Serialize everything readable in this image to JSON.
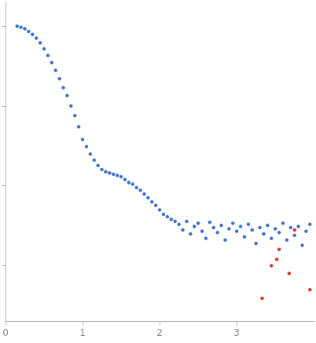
{
  "chart_data": {
    "type": "scatter",
    "log": "y",
    "grid": false,
    "tick_labels": "x",
    "xlim": [
      0,
      4
    ],
    "xticks": [
      0,
      1,
      2,
      3
    ],
    "ylim": [
      0.0002,
      2
    ],
    "yticks": [
      0.001,
      0.01,
      0.1,
      1
    ],
    "series": [
      {
        "color": "#3b6fc8",
        "marker": "circle",
        "x": [
          0.15,
          0.2,
          0.25,
          0.3,
          0.35,
          0.4,
          0.45,
          0.5,
          0.55,
          0.6,
          0.65,
          0.7,
          0.75,
          0.8,
          0.85,
          0.9,
          0.95,
          1.0,
          1.05,
          1.1,
          1.15,
          1.2,
          1.25,
          1.3,
          1.35,
          1.4,
          1.45,
          1.5,
          1.55,
          1.6,
          1.65,
          1.7,
          1.75,
          1.8,
          1.85,
          1.9,
          1.95,
          2.0,
          2.05,
          2.1,
          2.15,
          2.2,
          2.25,
          2.3,
          2.35,
          2.4,
          2.45,
          2.5,
          2.55,
          2.6,
          2.65,
          2.7,
          2.75,
          2.8,
          2.85,
          2.9,
          2.95,
          3.0,
          3.05,
          3.1,
          3.15,
          3.2,
          3.25,
          3.3,
          3.35,
          3.4,
          3.45,
          3.5,
          3.55,
          3.6,
          3.65,
          3.7,
          3.75,
          3.8,
          3.85,
          3.9,
          3.95
        ],
        "values": [
          1.0,
          0.97,
          0.93,
          0.86,
          0.79,
          0.71,
          0.62,
          0.52,
          0.43,
          0.35,
          0.28,
          0.22,
          0.17,
          0.135,
          0.1,
          0.076,
          0.055,
          0.038,
          0.031,
          0.025,
          0.021,
          0.018,
          0.016,
          0.015,
          0.0145,
          0.014,
          0.0135,
          0.013,
          0.012,
          0.011,
          0.0105,
          0.0095,
          0.0088,
          0.0079,
          0.0071,
          0.0063,
          0.0057,
          0.005,
          0.0044,
          0.0041,
          0.0038,
          0.0036,
          0.0033,
          0.0028,
          0.0036,
          0.0025,
          0.0031,
          0.0034,
          0.0027,
          0.0022,
          0.0035,
          0.003,
          0.0026,
          0.0032,
          0.0021,
          0.0029,
          0.0034,
          0.0027,
          0.0031,
          0.0023,
          0.0033,
          0.0028,
          0.0019,
          0.003,
          0.0025,
          0.0032,
          0.0022,
          0.0029,
          0.0026,
          0.0034,
          0.0021,
          0.003,
          0.0024,
          0.0031,
          0.0018,
          0.0027,
          0.0033
        ]
      },
      {
        "color": "#e0301e",
        "marker": "circle",
        "x": [
          3.33,
          3.45,
          3.52,
          3.55,
          3.68,
          3.75,
          3.95
        ],
        "values": [
          0.00039,
          0.001,
          0.0012,
          0.0016,
          0.0008,
          0.0028,
          0.0005
        ]
      }
    ]
  }
}
